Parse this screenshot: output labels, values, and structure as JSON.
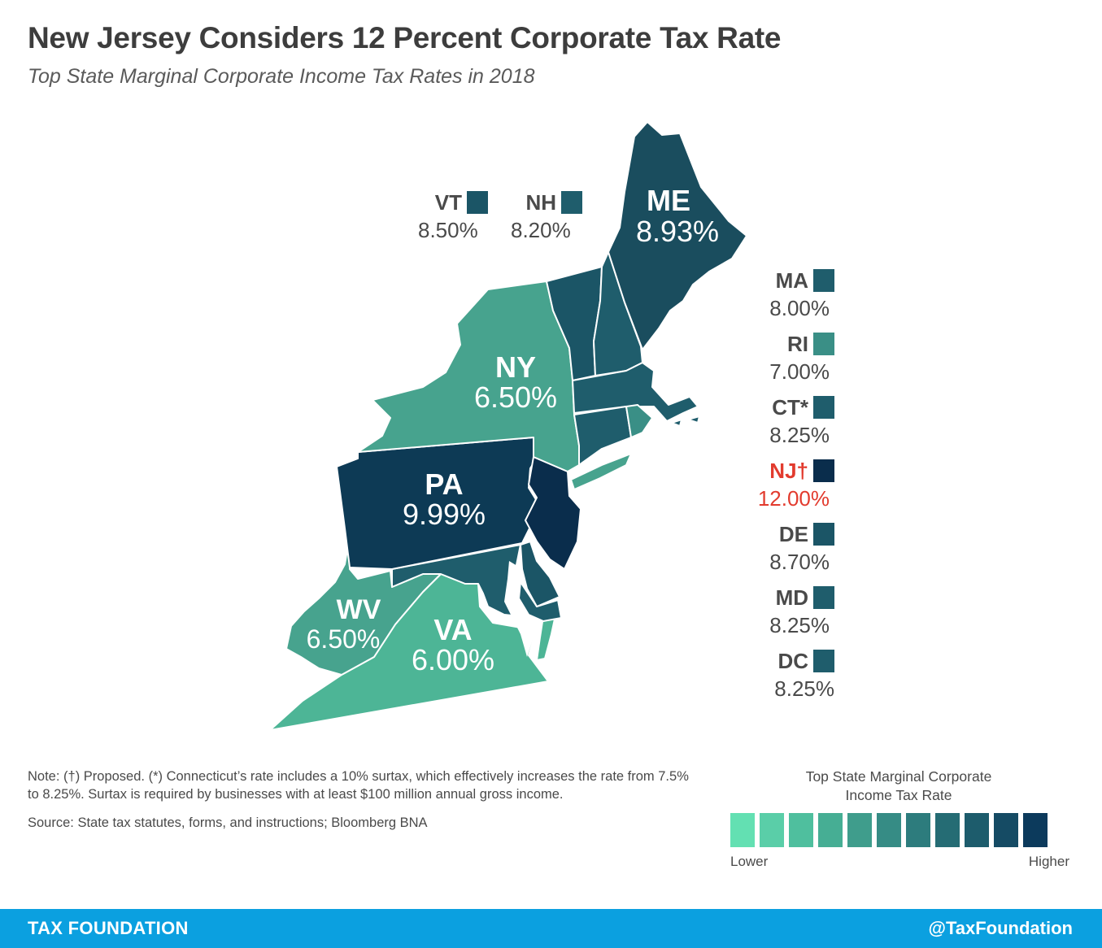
{
  "header": {
    "title": "New Jersey Considers 12 Percent Corporate Tax Rate",
    "subtitle": "Top State Marginal Corporate Income Tax Rates in 2018"
  },
  "map": {
    "labeled_states": [
      {
        "abbr": "ME",
        "rate": "8.93%",
        "color": "#1a4d5e"
      },
      {
        "abbr": "NY",
        "rate": "6.50%",
        "color": "#47a38e"
      },
      {
        "abbr": "PA",
        "rate": "9.99%",
        "color": "#0d3a55"
      },
      {
        "abbr": "WV",
        "rate": "6.50%",
        "color": "#47a38e"
      },
      {
        "abbr": "VA",
        "rate": "6.00%",
        "color": "#4db596"
      }
    ],
    "callouts": [
      {
        "abbr": "VT",
        "rate": "8.50%",
        "color": "#1b5566"
      },
      {
        "abbr": "NH",
        "rate": "8.20%",
        "color": "#1f5d6c"
      },
      {
        "abbr": "MA",
        "rate": "8.00%",
        "color": "#1f5d6c"
      },
      {
        "abbr": "RI",
        "rate": "7.00%",
        "color": "#3a8f86"
      },
      {
        "abbr": "CT*",
        "rate": "8.25%",
        "color": "#1f5d6c"
      },
      {
        "abbr": "NJ†",
        "rate": "12.00%",
        "color": "#0a2d4c",
        "highlight": true
      },
      {
        "abbr": "DE",
        "rate": "8.70%",
        "color": "#1b5566"
      },
      {
        "abbr": "MD",
        "rate": "8.25%",
        "color": "#1f5d6c"
      },
      {
        "abbr": "DC",
        "rate": "8.25%",
        "color": "#1f5d6c"
      }
    ],
    "highlight_color": "#e23b2e"
  },
  "notes": {
    "note": "Note: (†) Proposed. (*) Connecticut’s rate includes a 10% surtax, which effectively increases the rate from 7.5% to 8.25%. Surtax is required by businesses with at least $100 million annual gross income.",
    "source": "Source: State tax statutes, forms, and instructions; Bloomberg BNA"
  },
  "legend": {
    "title": "Top State Marginal Corporate Income Tax Rate",
    "low_label": "Lower",
    "high_label": "Higher",
    "scale_colors": [
      "#63e0b2",
      "#5acea8",
      "#4fbf9e",
      "#46ae94",
      "#3f9d8c",
      "#368c85",
      "#2d7c7d",
      "#256c74",
      "#1d5c6c",
      "#154b64",
      "#0c3a5c"
    ]
  },
  "footer": {
    "brand": "TAX FOUNDATION",
    "handle": "@TaxFoundation"
  }
}
